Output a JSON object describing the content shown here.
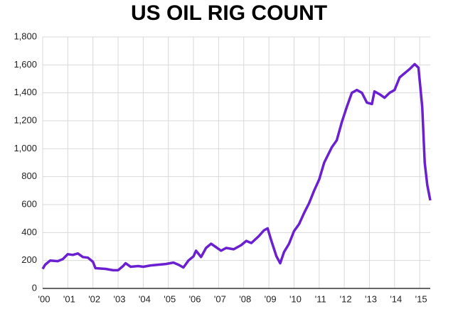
{
  "chart_data": {
    "type": "line",
    "title": "US OIL RIG COUNT",
    "x": [
      2000.0,
      2000.1,
      2000.3,
      2000.6,
      2000.8,
      2001.0,
      2001.2,
      2001.4,
      2001.6,
      2001.8,
      2002.0,
      2002.1,
      2002.5,
      2002.8,
      2003.0,
      2003.2,
      2003.3,
      2003.5,
      2003.8,
      2004.0,
      2004.3,
      2004.6,
      2004.9,
      2005.2,
      2005.4,
      2005.6,
      2005.8,
      2006.0,
      2006.1,
      2006.3,
      2006.5,
      2006.7,
      2006.9,
      2007.1,
      2007.3,
      2007.6,
      2007.9,
      2008.1,
      2008.3,
      2008.6,
      2008.8,
      2008.95,
      2009.1,
      2009.3,
      2009.45,
      2009.6,
      2009.8,
      2010.0,
      2010.2,
      2010.4,
      2010.6,
      2010.8,
      2011.0,
      2011.2,
      2011.5,
      2011.7,
      2011.9,
      2012.1,
      2012.3,
      2012.5,
      2012.7,
      2012.9,
      2013.1,
      2013.2,
      2013.4,
      2013.6,
      2013.8,
      2014.0,
      2014.2,
      2014.4,
      2014.6,
      2014.8,
      2014.95,
      2015.1,
      2015.2,
      2015.3,
      2015.42
    ],
    "series": [
      {
        "name": "US oil rig count",
        "color": "#6a1fd1",
        "values": [
          140,
          170,
          200,
          195,
          210,
          245,
          240,
          250,
          225,
          220,
          190,
          145,
          140,
          130,
          130,
          160,
          180,
          155,
          160,
          155,
          165,
          170,
          175,
          185,
          170,
          150,
          200,
          230,
          270,
          225,
          290,
          320,
          295,
          270,
          290,
          280,
          310,
          340,
          325,
          375,
          415,
          430,
          340,
          230,
          180,
          260,
          320,
          410,
          460,
          540,
          610,
          700,
          780,
          900,
          1010,
          1060,
          1190,
          1300,
          1400,
          1420,
          1400,
          1330,
          1320,
          1410,
          1390,
          1365,
          1400,
          1420,
          1510,
          1540,
          1570,
          1605,
          1580,
          1300,
          900,
          740,
          630
        ]
      }
    ],
    "xlim": [
      2000,
      2015.42
    ],
    "xticks": [
      {
        "value": 2000,
        "label": "'00"
      },
      {
        "value": 2001,
        "label": "'01"
      },
      {
        "value": 2002,
        "label": "'02"
      },
      {
        "value": 2003,
        "label": "'03"
      },
      {
        "value": 2004,
        "label": "'04"
      },
      {
        "value": 2005,
        "label": "'05"
      },
      {
        "value": 2006,
        "label": "'06"
      },
      {
        "value": 2007,
        "label": "'07"
      },
      {
        "value": 2008,
        "label": "'08"
      },
      {
        "value": 2009,
        "label": "'09"
      },
      {
        "value": 2010,
        "label": "'10"
      },
      {
        "value": 2011,
        "label": "'11"
      },
      {
        "value": 2012,
        "label": "'12"
      },
      {
        "value": 2013,
        "label": "'13"
      },
      {
        "value": 2014,
        "label": "'14"
      },
      {
        "value": 2015,
        "label": "'15"
      }
    ],
    "ylim": [
      0,
      1800
    ],
    "yticks": [
      0,
      200,
      400,
      600,
      800,
      {
        "value": 1000,
        "label": "1,000"
      },
      {
        "value": 1200,
        "label": "1,200"
      },
      {
        "value": 1400,
        "label": "1,400"
      },
      {
        "value": 1600,
        "label": "1,600"
      },
      {
        "value": 1800,
        "label": "1,800"
      }
    ],
    "grid": true
  }
}
